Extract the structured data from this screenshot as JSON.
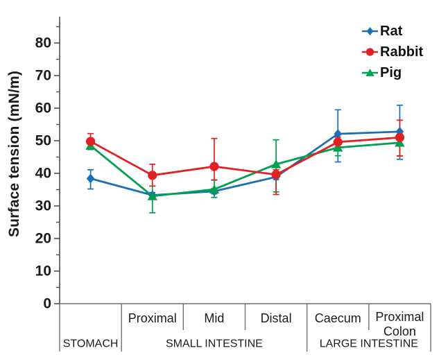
{
  "figure": {
    "title": ""
  },
  "legend": [
    {
      "label": "Rat",
      "color": "#1b6fb5",
      "marker": "diamond"
    },
    {
      "label": "Rabbit",
      "color": "#e02023",
      "marker": "circle"
    },
    {
      "label": "Pig",
      "color": "#00a04e",
      "marker": "triangle"
    }
  ],
  "chart_data": {
    "type": "line",
    "title": "",
    "xlabel": "",
    "ylabel": "Surface tension (mN/m)",
    "ylim": [
      0,
      85
    ],
    "yticks": [
      "0",
      "10",
      "20",
      "30",
      "40",
      "50",
      "60",
      "70",
      "80"
    ],
    "minor_ytick_values": [
      5,
      15,
      25,
      35,
      45,
      55,
      65,
      75,
      85
    ],
    "grid": false,
    "legend_position": "top-right",
    "categories": [
      "Stomach",
      "Proximal",
      "Mid",
      "Distal",
      "Caecum",
      "Proximal Colon"
    ],
    "axis_cell_labels": [
      "",
      "Proximal",
      "Mid",
      "Distal",
      "Caecum",
      "Proximal|Colon"
    ],
    "region_groups": [
      {
        "label": "STOMACH",
        "span": [
          0,
          1
        ]
      },
      {
        "label": "SMALL INTESTINE",
        "span": [
          1,
          4
        ]
      },
      {
        "label": "LARGE INTESTINE",
        "span": [
          4,
          6
        ]
      }
    ],
    "series": [
      {
        "name": "Rat",
        "color": "#1b6fb5",
        "marker": "diamond",
        "values": [
          38.4,
          33.3,
          34.5,
          38.9,
          52.1,
          52.8
        ],
        "err_up": [
          2.7,
          0.8,
          0.8,
          0.8,
          7.4,
          8.1
        ],
        "err_down": [
          3.2,
          0.8,
          0.8,
          0.8,
          8.6,
          8.5
        ]
      },
      {
        "name": "Rabbit",
        "color": "#e02023",
        "marker": "circle",
        "values": [
          49.8,
          39.4,
          42.1,
          39.6,
          49.6,
          51.0
        ],
        "err_up": [
          2.4,
          3.4,
          8.6,
          1.5,
          1.5,
          5.3
        ],
        "err_down": [
          1.6,
          3.3,
          4.1,
          6.1,
          1.5,
          5.7
        ]
      },
      {
        "name": "Pig",
        "color": "#00a04e",
        "marker": "triangle",
        "values": [
          48.5,
          33.0,
          35.1,
          42.8,
          47.9,
          49.4
        ],
        "err_up": [
          1.2,
          3.1,
          2.8,
          7.5,
          2.0,
          2.6
        ],
        "err_down": [
          1.2,
          5.1,
          2.5,
          8.5,
          2.5,
          4.0
        ]
      }
    ]
  }
}
